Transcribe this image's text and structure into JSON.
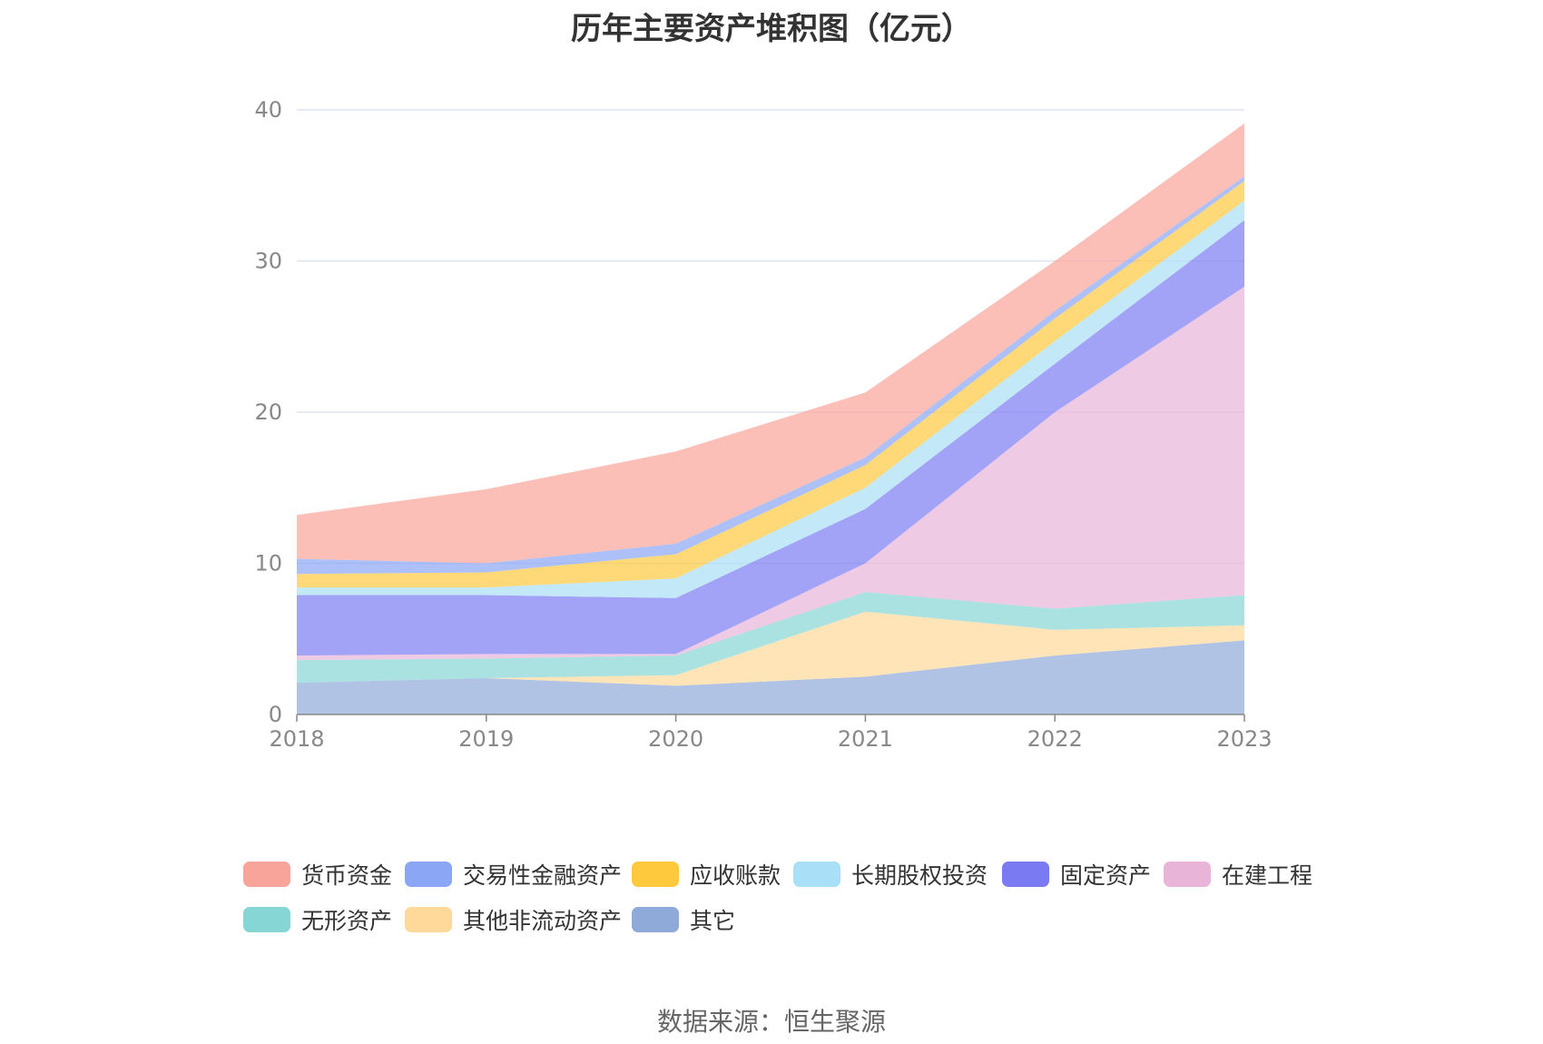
{
  "chart_data": {
    "type": "area",
    "stacked": true,
    "title": "历年主要资产堆积图（亿元）",
    "x": [
      "2018",
      "2019",
      "2020",
      "2021",
      "2022",
      "2023"
    ],
    "ylim": [
      0,
      40
    ],
    "yticks": [
      0,
      10,
      20,
      30,
      40
    ],
    "grid": true,
    "legend_position": "bottom",
    "series": [
      {
        "name": "其它",
        "color": "#8fa9d9",
        "values": [
          2.1,
          2.4,
          1.9,
          2.5,
          3.9,
          4.9
        ]
      },
      {
        "name": "其他非流动资产",
        "color": "#ffd99a",
        "values": [
          0.0,
          0.0,
          0.7,
          4.3,
          1.7,
          1.0
        ]
      },
      {
        "name": "无形资产",
        "color": "#86d6d6",
        "values": [
          1.5,
          1.3,
          1.3,
          1.3,
          1.4,
          2.0
        ]
      },
      {
        "name": "在建工程",
        "color": "#e8b4d8",
        "values": [
          0.3,
          0.3,
          0.1,
          1.9,
          13.0,
          20.4
        ]
      },
      {
        "name": "固定资产",
        "color": "#7a7af2",
        "values": [
          4.0,
          3.9,
          3.7,
          3.6,
          3.2,
          4.4
        ]
      },
      {
        "name": "长期股权投资",
        "color": "#a9e0f7",
        "values": [
          0.5,
          0.5,
          1.3,
          1.4,
          1.5,
          1.3
        ]
      },
      {
        "name": "应收账款",
        "color": "#ffc93e",
        "values": [
          0.9,
          1.0,
          1.6,
          1.5,
          1.5,
          1.3
        ]
      },
      {
        "name": "交易性金融资产",
        "color": "#8aa6f5",
        "values": [
          1.0,
          0.6,
          0.7,
          0.5,
          0.5,
          0.3
        ]
      },
      {
        "name": "货币资金",
        "color": "#f9a49a",
        "values": [
          2.9,
          4.9,
          6.1,
          4.3,
          3.3,
          3.5
        ]
      }
    ]
  },
  "legend_order": [
    "货币资金",
    "交易性金融资产",
    "应收账款",
    "长期股权投资",
    "固定资产",
    "在建工程",
    "无形资产",
    "其他非流动资产",
    "其它"
  ],
  "source": "数据来源：恒生聚源"
}
